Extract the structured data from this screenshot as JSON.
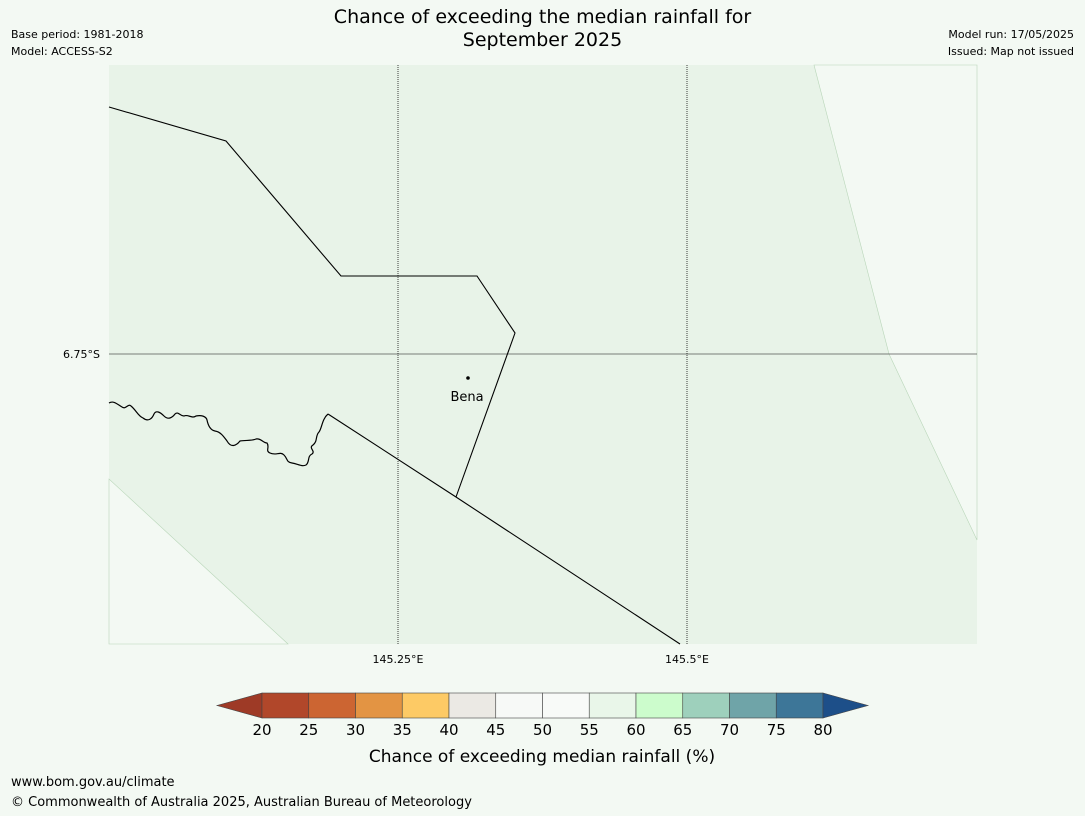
{
  "header": {
    "title_line1": "Chance of exceeding the median rainfall for",
    "title_line2": "September 2025",
    "base_period": "Base period: 1981-2018",
    "model": "Model: ACCESS-S2",
    "model_run": "Model run: 17/05/2025",
    "issued": "Issued: Map not issued"
  },
  "map": {
    "latitude_label": "6.75°S",
    "longitude_labels": [
      "145.25°E",
      "145.5°E"
    ],
    "place": "Bena",
    "background_fill": "#e8f3e8",
    "outside_fill": "#f3f9f3"
  },
  "colorbar": {
    "ticks": [
      "20",
      "25",
      "30",
      "35",
      "40",
      "45",
      "50",
      "55",
      "60",
      "65",
      "70",
      "75",
      "80"
    ],
    "colors": [
      "#9e3a26",
      "#b1472a",
      "#cc6532",
      "#e39443",
      "#fdca65",
      "#ebe9e4",
      "#f7f9f7",
      "#f8faf8",
      "#e9f6e9",
      "#ccfccc",
      "#9ed0bc",
      "#6fa4a8",
      "#3d7698",
      "#1d4f89"
    ],
    "label": "Chance of exceeding median rainfall (%)"
  },
  "footer": {
    "url": "www.bom.gov.au/climate",
    "copyright": "© Commonwealth of Australia 2025, Australian Bureau of Meteorology"
  }
}
